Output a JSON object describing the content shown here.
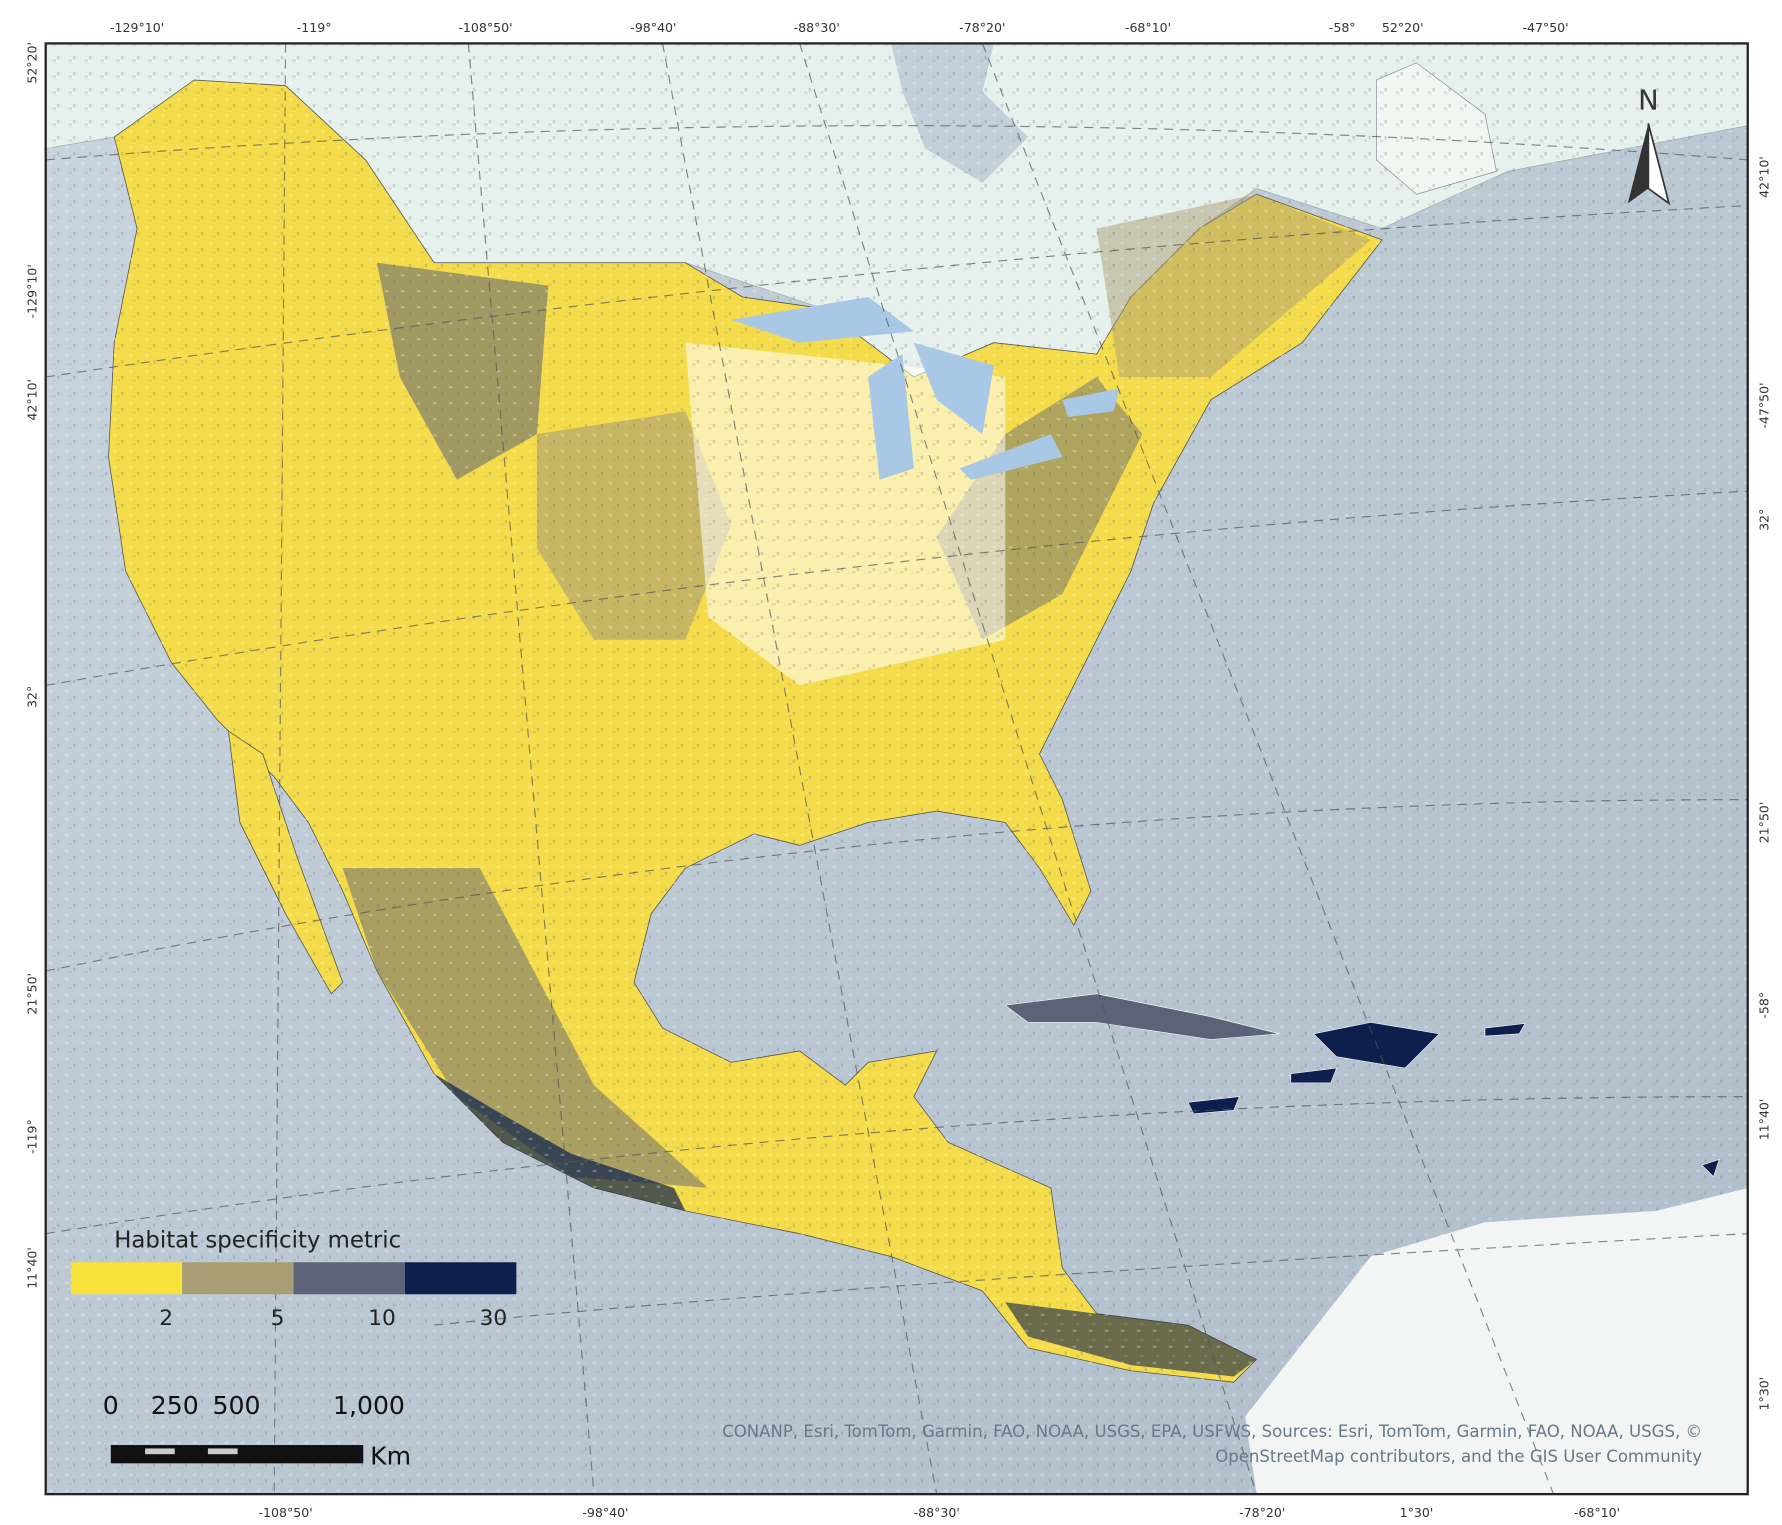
{
  "map": {
    "graticule_labels": {
      "top": [
        "-129°10'",
        "-119°",
        "-108°50'",
        "-98°40'",
        "-88°30'",
        "-78°20'",
        "-68°10'",
        "-58°",
        "52°20'",
        "-47°50'"
      ],
      "bottom": [
        "-108°50'",
        "-98°40'",
        "-88°30'",
        "-78°20'",
        "1°30'",
        "-68°10'"
      ],
      "left": [
        "52°20'",
        "-129°10'",
        "42°10'",
        "32°",
        "21°50'",
        "-119°",
        "11°40'"
      ],
      "right": [
        "42°10'",
        "-47°50'",
        "32°",
        "21°50'",
        "-58°",
        "11°40'",
        "1°30'"
      ]
    },
    "legend": {
      "title": "Habitat specificity metric",
      "classes": [
        {
          "color": "#f7e13a",
          "label": "2"
        },
        {
          "color": "#a99d74",
          "label": "5"
        },
        {
          "color": "#5c6277",
          "label": "10"
        },
        {
          "color": "#0c1f4d",
          "label": "30"
        }
      ]
    },
    "scale_bar": {
      "labels": [
        "0",
        "250",
        "500",
        "1,000"
      ],
      "unit": "Km"
    },
    "north_arrow": "N",
    "attribution": [
      "CONANP, Esri, TomTom, Garmin, FAO, NOAA, USGS, EPA, USFWS, Sources: Esri, TomTom, Garmin, FAO, NOAA, USGS, ©",
      "OpenStreetMap contributors, and the GIS User Community"
    ]
  }
}
